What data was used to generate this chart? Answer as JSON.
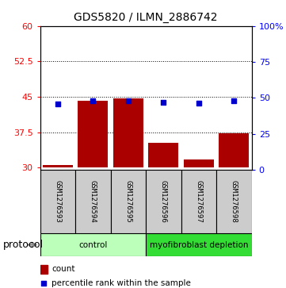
{
  "title": "GDS5820 / ILMN_2886742",
  "samples": [
    "GSM1276593",
    "GSM1276594",
    "GSM1276595",
    "GSM1276596",
    "GSM1276597",
    "GSM1276598"
  ],
  "bar_values": [
    30.6,
    44.2,
    44.7,
    35.2,
    31.7,
    37.3
  ],
  "percentile_values": [
    46.0,
    48.2,
    48.1,
    47.2,
    46.5,
    48.0
  ],
  "groups": [
    {
      "label": "control",
      "indices": [
        0,
        1,
        2
      ],
      "color": "#bbffbb"
    },
    {
      "label": "myofibroblast depletion",
      "indices": [
        3,
        4,
        5
      ],
      "color": "#33dd33"
    }
  ],
  "bar_color": "#aa0000",
  "dot_color": "#0000cc",
  "ylim_left": [
    29.5,
    60
  ],
  "ylim_right": [
    0,
    100
  ],
  "yticks_left": [
    30,
    37.5,
    45,
    52.5,
    60
  ],
  "ytick_labels_left": [
    "30",
    "37.5",
    "45",
    "52.5",
    "60"
  ],
  "yticks_right": [
    0,
    25,
    50,
    75,
    100
  ],
  "ytick_labels_right": [
    "0",
    "25",
    "50",
    "75",
    "100%"
  ],
  "grid_values": [
    37.5,
    45.0,
    52.5
  ],
  "legend_count_label": "count",
  "legend_percentile_label": "percentile rank within the sample",
  "protocol_label": "protocol",
  "sample_box_color": "#cccccc",
  "plot_bg_color": "#ffffff",
  "bar_bottom": 30.0
}
